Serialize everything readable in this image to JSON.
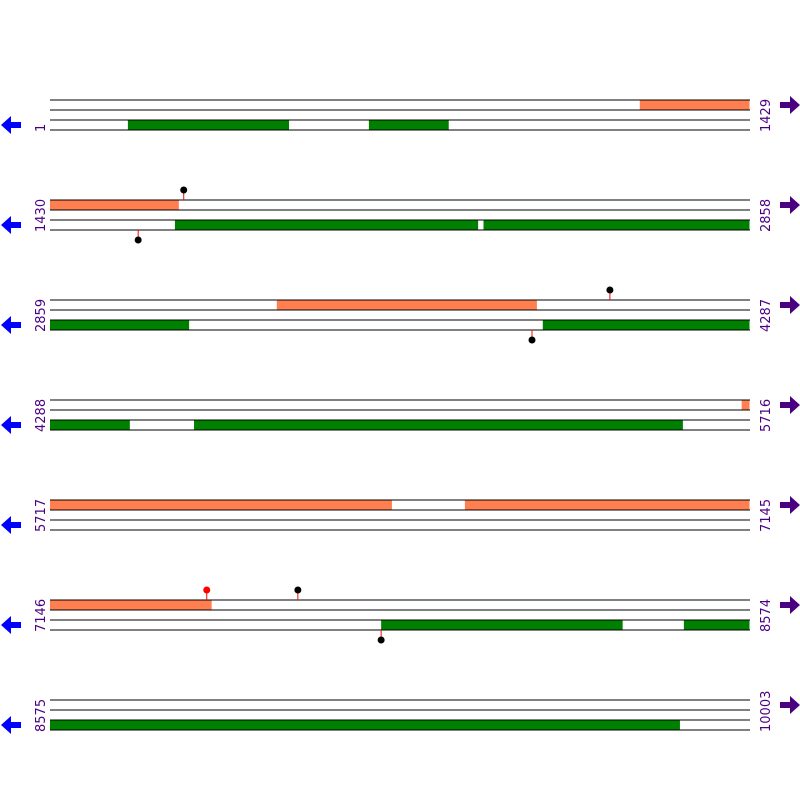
{
  "rows": [
    {
      "start": 1,
      "end": 1429,
      "forward": [
        [
          1205,
          1429
        ]
      ],
      "reverse": [
        [
          160,
          489
        ],
        [
          652,
          815
        ]
      ],
      "forward_sites": [],
      "reverse_sites": []
    },
    {
      "start": 1430,
      "end": 2858,
      "forward": [
        [
          1430,
          1693
        ]
      ],
      "reverse": [
        [
          1685,
          2304
        ],
        [
          2315,
          2858
        ]
      ],
      "forward_sites": [
        {
          "position": 1703,
          "color": "#000000"
        }
      ],
      "reverse_sites": [
        {
          "position": 1610,
          "color": "#000000"
        }
      ]
    },
    {
      "start": 2859,
      "end": 4287,
      "forward": [
        [
          3322,
          3853
        ]
      ],
      "reverse": [
        [
          2859,
          3143
        ],
        [
          3865,
          4287
        ]
      ],
      "forward_sites": [
        {
          "position": 4002,
          "color": "#000000"
        }
      ],
      "reverse_sites": [
        {
          "position": 3843,
          "color": "#000000"
        }
      ]
    },
    {
      "start": 4288,
      "end": 5716,
      "forward": [
        [
          5700,
          5716
        ]
      ],
      "reverse": [
        [
          4288,
          4451
        ],
        [
          4582,
          5580
        ]
      ],
      "forward_sites": [],
      "reverse_sites": []
    },
    {
      "start": 5717,
      "end": 7145,
      "forward": [
        [
          5717,
          6415
        ],
        [
          6564,
          7145
        ]
      ],
      "reverse": [],
      "forward_sites": [],
      "reverse_sites": []
    },
    {
      "start": 7146,
      "end": 8574,
      "forward": [
        [
          7146,
          7476
        ]
      ],
      "reverse": [
        [
          7822,
          8315
        ],
        [
          8440,
          8574
        ]
      ],
      "forward_sites": [
        {
          "position": 7466,
          "color": "#ff0000"
        },
        {
          "position": 7652,
          "color": "#000000"
        }
      ],
      "reverse_sites": [
        {
          "position": 7822,
          "color": "#000000"
        }
      ]
    },
    {
      "start": 8575,
      "end": 10003,
      "forward": [],
      "reverse": [
        [
          8575,
          9861
        ]
      ],
      "forward_sites": [],
      "reverse_sites": []
    }
  ],
  "forward_color": "#ff7f50",
  "reverse_color": "#008000"
}
